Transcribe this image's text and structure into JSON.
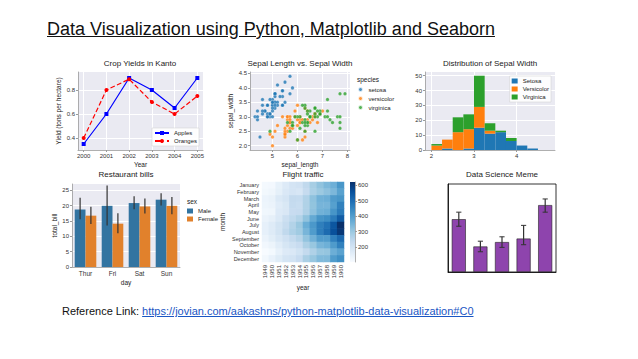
{
  "title": "Data Visualization using Python, Matplotlib and Seaborn",
  "reference": {
    "label": "Reference Link:",
    "url": "https://jovian.com/aakashns/python-matplotlib-data-visualization#C0"
  },
  "chart_data": [
    {
      "type": "line",
      "title": "Crop Yields in Kanto",
      "xlabel": "Year",
      "ylabel": "Yield (tons per hectare)",
      "x": [
        2000,
        2001,
        2002,
        2003,
        2004,
        2005
      ],
      "series": [
        {
          "name": "Apples",
          "color": "#0000ff",
          "marker": "square",
          "line_style": "solid",
          "values": [
            0.35,
            0.6,
            0.9,
            0.8,
            0.65,
            0.9
          ]
        },
        {
          "name": "Oranges",
          "color": "#ff0000",
          "marker": "circle",
          "line_style": "dashed",
          "values": [
            0.4,
            0.8,
            0.89,
            0.7,
            0.6,
            0.75
          ]
        }
      ],
      "xlim": [
        1999.75,
        2005.25
      ],
      "xticks": [
        2000,
        2001,
        2002,
        2003,
        2004,
        2005
      ],
      "ylim": [
        0.3,
        0.95
      ],
      "yticks": [
        0.4,
        0.6,
        0.8
      ],
      "grid": true,
      "legend": "lower right"
    },
    {
      "type": "scatter",
      "title": "Sepal Length vs. Sepal Width",
      "xlabel": "sepal_length",
      "ylabel": "sepal_width",
      "legend_title": "species",
      "series": [
        {
          "name": "setosa",
          "color": "#1f77b4",
          "values": [
            [
              5.1,
              3.5
            ],
            [
              4.9,
              3.0
            ],
            [
              4.7,
              3.2
            ],
            [
              4.6,
              3.1
            ],
            [
              5.0,
              3.6
            ],
            [
              5.4,
              3.9
            ],
            [
              4.6,
              3.4
            ],
            [
              5.0,
              3.4
            ],
            [
              4.4,
              2.9
            ],
            [
              4.9,
              3.1
            ],
            [
              5.4,
              3.7
            ],
            [
              4.8,
              3.4
            ],
            [
              4.8,
              3.0
            ],
            [
              4.3,
              3.0
            ],
            [
              5.8,
              4.0
            ],
            [
              5.7,
              4.4
            ],
            [
              5.4,
              3.9
            ],
            [
              5.1,
              3.5
            ],
            [
              5.7,
              3.8
            ],
            [
              5.1,
              3.8
            ],
            [
              5.4,
              3.4
            ],
            [
              5.1,
              3.7
            ],
            [
              4.6,
              3.6
            ],
            [
              5.1,
              3.3
            ],
            [
              4.8,
              3.4
            ],
            [
              5.0,
              3.0
            ],
            [
              5.0,
              3.4
            ],
            [
              5.2,
              3.5
            ],
            [
              5.2,
              3.4
            ],
            [
              4.7,
              3.2
            ],
            [
              4.8,
              3.1
            ],
            [
              5.4,
              3.4
            ],
            [
              5.2,
              4.1
            ],
            [
              5.5,
              4.2
            ],
            [
              4.9,
              3.1
            ],
            [
              5.0,
              3.2
            ],
            [
              5.5,
              3.5
            ],
            [
              4.9,
              3.6
            ],
            [
              4.4,
              3.0
            ],
            [
              5.1,
              3.4
            ],
            [
              5.0,
              3.5
            ],
            [
              4.5,
              2.3
            ],
            [
              4.4,
              3.2
            ],
            [
              5.0,
              3.5
            ],
            [
              5.1,
              3.8
            ],
            [
              4.8,
              3.0
            ],
            [
              5.1,
              3.8
            ],
            [
              4.6,
              3.2
            ],
            [
              5.3,
              3.7
            ],
            [
              5.0,
              3.3
            ]
          ]
        },
        {
          "name": "versicolor",
          "color": "#ff7f0e",
          "values": [
            [
              7.0,
              3.2
            ],
            [
              6.4,
              3.2
            ],
            [
              6.9,
              3.1
            ],
            [
              5.5,
              2.3
            ],
            [
              6.5,
              2.8
            ],
            [
              5.7,
              2.8
            ],
            [
              6.3,
              3.3
            ],
            [
              4.9,
              2.4
            ],
            [
              6.6,
              2.9
            ],
            [
              5.2,
              2.7
            ],
            [
              5.0,
              2.0
            ],
            [
              5.9,
              3.0
            ],
            [
              6.0,
              2.2
            ],
            [
              6.1,
              2.9
            ],
            [
              5.6,
              2.9
            ],
            [
              6.7,
              3.1
            ],
            [
              5.6,
              3.0
            ],
            [
              5.8,
              2.7
            ],
            [
              6.2,
              2.2
            ],
            [
              5.6,
              2.5
            ],
            [
              5.9,
              3.2
            ],
            [
              6.1,
              2.8
            ],
            [
              6.3,
              2.5
            ],
            [
              6.1,
              2.8
            ],
            [
              6.4,
              2.9
            ],
            [
              6.6,
              3.0
            ],
            [
              6.8,
              2.8
            ],
            [
              6.7,
              3.0
            ],
            [
              6.0,
              2.9
            ],
            [
              5.7,
              2.6
            ],
            [
              5.5,
              2.4
            ],
            [
              5.5,
              2.4
            ],
            [
              5.8,
              2.7
            ],
            [
              6.0,
              2.7
            ],
            [
              5.4,
              3.0
            ],
            [
              6.0,
              3.4
            ],
            [
              6.7,
              3.1
            ],
            [
              6.3,
              2.3
            ],
            [
              5.6,
              3.0
            ],
            [
              5.5,
              2.5
            ],
            [
              5.5,
              2.6
            ],
            [
              6.1,
              3.0
            ],
            [
              5.8,
              2.6
            ],
            [
              5.0,
              2.3
            ],
            [
              5.6,
              2.7
            ],
            [
              5.7,
              3.0
            ],
            [
              5.7,
              2.9
            ],
            [
              6.2,
              2.9
            ],
            [
              5.1,
              2.5
            ],
            [
              5.7,
              2.8
            ]
          ]
        },
        {
          "name": "virginica",
          "color": "#2ca02c",
          "values": [
            [
              6.3,
              3.3
            ],
            [
              5.8,
              2.7
            ],
            [
              7.1,
              3.0
            ],
            [
              6.3,
              2.9
            ],
            [
              6.5,
              3.0
            ],
            [
              7.6,
              3.0
            ],
            [
              4.9,
              2.5
            ],
            [
              7.3,
              2.9
            ],
            [
              6.7,
              2.5
            ],
            [
              7.2,
              3.6
            ],
            [
              6.5,
              3.2
            ],
            [
              6.4,
              2.7
            ],
            [
              6.8,
              3.0
            ],
            [
              5.7,
              2.5
            ],
            [
              5.8,
              2.8
            ],
            [
              6.4,
              3.2
            ],
            [
              6.5,
              3.0
            ],
            [
              7.7,
              3.8
            ],
            [
              7.7,
              2.6
            ],
            [
              6.0,
              2.2
            ],
            [
              6.9,
              3.2
            ],
            [
              5.6,
              2.8
            ],
            [
              7.7,
              2.8
            ],
            [
              6.3,
              2.7
            ],
            [
              6.7,
              3.3
            ],
            [
              7.2,
              3.2
            ],
            [
              6.2,
              2.8
            ],
            [
              6.1,
              3.0
            ],
            [
              6.4,
              2.8
            ],
            [
              7.2,
              3.0
            ],
            [
              7.4,
              2.8
            ],
            [
              7.9,
              3.8
            ],
            [
              6.4,
              2.8
            ],
            [
              6.3,
              2.8
            ],
            [
              6.1,
              2.6
            ],
            [
              7.7,
              3.0
            ],
            [
              6.3,
              3.4
            ],
            [
              6.4,
              3.1
            ],
            [
              6.0,
              3.0
            ],
            [
              6.9,
              3.1
            ],
            [
              6.7,
              3.1
            ],
            [
              6.9,
              3.1
            ],
            [
              5.8,
              2.7
            ],
            [
              6.8,
              3.2
            ],
            [
              6.7,
              3.3
            ],
            [
              6.7,
              3.0
            ],
            [
              6.3,
              2.5
            ],
            [
              6.5,
              3.0
            ],
            [
              6.2,
              3.4
            ],
            [
              5.9,
              3.0
            ]
          ]
        }
      ],
      "xlim": [
        4.1,
        8.1
      ],
      "xticks": [
        5,
        6,
        7,
        8
      ],
      "ylim": [
        1.85,
        4.55
      ],
      "yticks": [
        {
          "value": 2,
          "label": "2.0"
        },
        2.5,
        {
          "value": 3,
          "label": "3.0"
        },
        3.5,
        {
          "value": 4,
          "label": "4.0"
        },
        4.5
      ],
      "grid": true,
      "legend": "right"
    },
    {
      "type": "histogram",
      "title": "Distribution of Sepal Width",
      "bins": [
        2,
        2.25,
        2.5,
        2.75,
        3,
        3.25,
        3.5,
        3.75,
        4,
        4.25,
        4.5,
        4.75
      ],
      "series": [
        {
          "name": "Setosa",
          "color": "#1f77b4",
          "values": [
            0,
            1,
            0,
            1,
            15,
            11,
            12,
            6,
            3,
            1,
            0
          ]
        },
        {
          "name": "Versicolor",
          "color": "#ff7f0e",
          "values": [
            3,
            6,
            12,
            13,
            14,
            2,
            0,
            0,
            0,
            0,
            0
          ]
        },
        {
          "name": "Virginica",
          "color": "#2ca02c",
          "values": [
            1,
            0,
            10,
            10,
            21,
            5,
            1,
            2,
            0,
            0,
            0
          ]
        }
      ],
      "stacked": true,
      "xlim": [
        1.85,
        4.9
      ],
      "xticks": [
        2,
        3,
        4
      ],
      "ylim": [
        0,
        52.5
      ],
      "yticks": [
        0,
        10,
        20,
        30,
        40,
        50
      ],
      "grid": true,
      "legend": "upper right"
    },
    {
      "type": "bar",
      "title": "Restaurant bills",
      "xlabel": "day",
      "ylabel": "total_bill",
      "legend_title": "sex",
      "categories": [
        "Thur",
        "Fri",
        "Sat",
        "Sun"
      ],
      "series": [
        {
          "name": "Male",
          "color": "#3274a1",
          "values": [
            18.7,
            19.9,
            20.8,
            21.9
          ],
          "err_low": [
            15.5,
            13.5,
            18.8,
            20.0
          ],
          "err_high": [
            22.5,
            26.5,
            23.0,
            24.0
          ]
        },
        {
          "name": "Female",
          "color": "#e1812c",
          "values": [
            16.7,
            14.1,
            19.7,
            19.9
          ],
          "err_low": [
            14.0,
            11.0,
            17.4,
            17.2
          ],
          "err_high": [
            19.6,
            17.5,
            22.3,
            22.8
          ]
        }
      ],
      "ylim": [
        0,
        27
      ],
      "yticks": [
        0,
        5,
        10,
        15,
        20,
        25
      ],
      "grid": true,
      "legend": "right"
    },
    {
      "type": "heatmap",
      "title": "Flight traffic",
      "xlabel": "year",
      "ylabel": "month",
      "x": [
        "1949",
        "1950",
        "1951",
        "1952",
        "1953",
        "1954",
        "1955",
        "1956",
        "1957",
        "1958",
        "1959",
        "1960"
      ],
      "y": [
        "January",
        "February",
        "March",
        "April",
        "May",
        "June",
        "July",
        "August",
        "September",
        "October",
        "November",
        "December"
      ],
      "cells": [
        [
          112,
          115,
          145,
          171,
          196,
          204,
          242,
          284,
          315,
          340,
          360,
          417
        ],
        [
          118,
          126,
          150,
          180,
          196,
          188,
          233,
          277,
          301,
          318,
          342,
          391
        ],
        [
          132,
          141,
          178,
          193,
          236,
          235,
          267,
          317,
          356,
          362,
          406,
          419
        ],
        [
          129,
          135,
          163,
          181,
          235,
          227,
          269,
          313,
          348,
          348,
          396,
          461
        ],
        [
          121,
          125,
          172,
          183,
          229,
          234,
          270,
          318,
          355,
          363,
          420,
          472
        ],
        [
          135,
          149,
          178,
          218,
          243,
          264,
          315,
          374,
          422,
          435,
          472,
          535
        ],
        [
          148,
          170,
          199,
          230,
          264,
          302,
          364,
          413,
          465,
          491,
          548,
          622
        ],
        [
          148,
          170,
          199,
          242,
          272,
          293,
          347,
          405,
          467,
          505,
          559,
          606
        ],
        [
          136,
          158,
          184,
          209,
          237,
          259,
          312,
          355,
          404,
          404,
          463,
          508
        ],
        [
          119,
          133,
          162,
          191,
          211,
          229,
          274,
          306,
          347,
          359,
          407,
          461
        ],
        [
          104,
          114,
          146,
          172,
          180,
          203,
          237,
          271,
          305,
          310,
          362,
          390
        ],
        [
          118,
          140,
          166,
          194,
          201,
          229,
          278,
          306,
          336,
          337,
          405,
          432
        ]
      ],
      "colorbar_range": [
        104,
        622
      ],
      "colorbar_ticks": [
        200,
        300,
        400,
        500,
        600
      ]
    },
    {
      "type": "bar",
      "title": "Data Science Meme",
      "categories": [
        null,
        null,
        null,
        null,
        null
      ],
      "values": [
        6.0,
        2.9,
        3.4,
        3.8,
        7.6
      ],
      "err_low": [
        5.2,
        2.3,
        2.8,
        3.1,
        6.8
      ],
      "err_high": [
        6.8,
        3.5,
        4.0,
        5.3,
        8.3
      ],
      "color": "#8e44ad",
      "ylim": [
        0,
        10
      ],
      "tick_labels": false
    }
  ]
}
